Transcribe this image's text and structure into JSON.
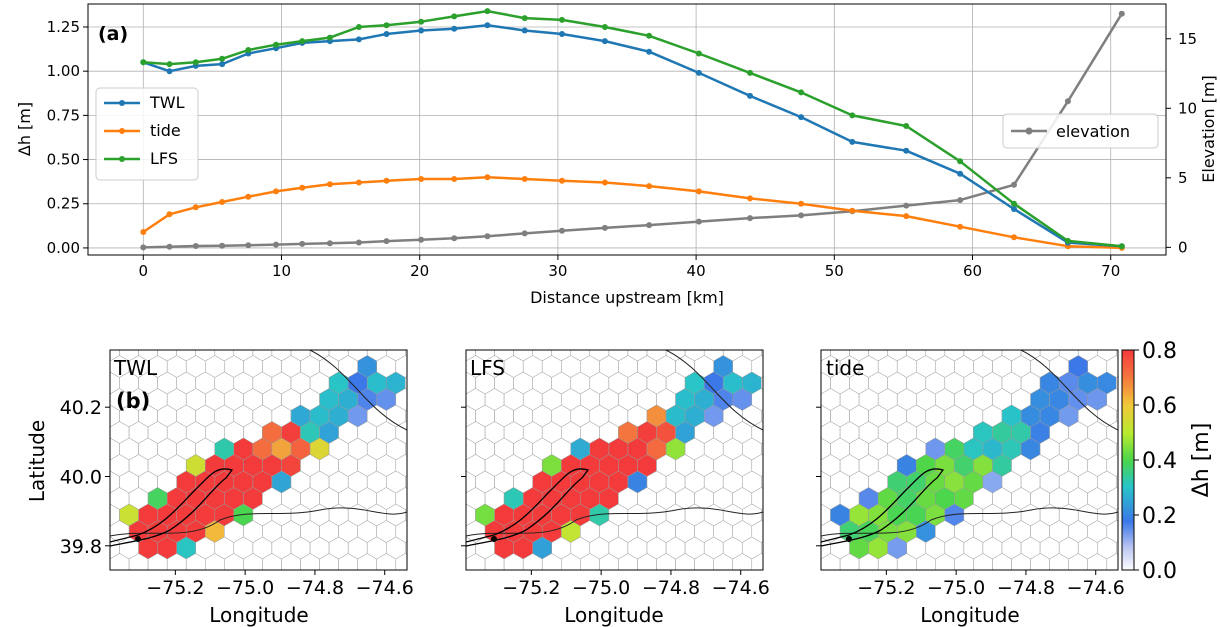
{
  "chart_data": [
    {
      "type": "line",
      "panel_label": "(a)",
      "xlabel": "Distance upstream [km]",
      "ylabel": "Δh [m]",
      "y2label": "Elevation [m]",
      "xlim": [
        -4,
        74
      ],
      "ylim": [
        -0.04,
        1.38
      ],
      "y2lim": [
        -0.55,
        17.5
      ],
      "xticks": [
        0,
        10,
        20,
        30,
        40,
        50,
        60,
        70
      ],
      "yticks": [
        "0.00",
        "0.25",
        "0.50",
        "0.75",
        "1.00",
        "1.25"
      ],
      "y2ticks": [
        0,
        5,
        10,
        15
      ],
      "grid": true,
      "legend_left": "center-left",
      "legend_right": "center-right",
      "x": [
        0,
        1.9,
        3.8,
        5.7,
        7.6,
        9.6,
        11.5,
        13.5,
        15.6,
        17.6,
        20.1,
        22.5,
        24.9,
        27.6,
        30.3,
        33.4,
        36.6,
        40.2,
        43.9,
        47.6,
        51.3,
        55.2,
        59.1,
        63.0,
        66.9,
        70.8
      ],
      "series": [
        {
          "name": "TWL",
          "axis": "left",
          "color": "#1f77b4",
          "values": [
            1.05,
            1.0,
            1.03,
            1.04,
            1.1,
            1.13,
            1.16,
            1.17,
            1.18,
            1.21,
            1.23,
            1.24,
            1.26,
            1.23,
            1.21,
            1.17,
            1.11,
            0.99,
            0.86,
            0.74,
            0.6,
            0.55,
            0.42,
            0.22,
            0.03,
            0.01
          ]
        },
        {
          "name": "tide",
          "axis": "left",
          "color": "#ff7f0e",
          "values": [
            0.09,
            0.19,
            0.23,
            0.26,
            0.29,
            0.32,
            0.34,
            0.36,
            0.37,
            0.38,
            0.39,
            0.39,
            0.4,
            0.39,
            0.38,
            0.37,
            0.35,
            0.32,
            0.28,
            0.25,
            0.21,
            0.18,
            0.12,
            0.06,
            0.01,
            0.0
          ]
        },
        {
          "name": "LFS",
          "axis": "left",
          "color": "#2ca02c",
          "values": [
            1.05,
            1.04,
            1.05,
            1.07,
            1.12,
            1.15,
            1.17,
            1.19,
            1.25,
            1.26,
            1.28,
            1.31,
            1.34,
            1.3,
            1.29,
            1.25,
            1.2,
            1.1,
            0.99,
            0.88,
            0.75,
            0.69,
            0.49,
            0.25,
            0.04,
            0.01
          ]
        },
        {
          "name": "elevation",
          "axis": "right",
          "color": "#7f7f7f",
          "values": [
            0.0,
            0.05,
            0.1,
            0.12,
            0.15,
            0.2,
            0.25,
            0.3,
            0.35,
            0.45,
            0.55,
            0.65,
            0.8,
            1.0,
            1.2,
            1.4,
            1.6,
            1.85,
            2.1,
            2.3,
            2.6,
            3.0,
            3.4,
            4.5,
            10.5,
            16.8
          ]
        }
      ]
    },
    {
      "type": "heatmap",
      "panel_label": "(b)",
      "subplots": [
        {
          "title": "TWL",
          "mode": "twl"
        },
        {
          "title": "LFS",
          "mode": "lfs"
        },
        {
          "title": "tide",
          "mode": "tide"
        }
      ],
      "xlabel": "Longitude",
      "ylabel": "Latitude",
      "xlim": [
        -75.4,
        -74.55
      ],
      "ylim": [
        39.75,
        40.35
      ],
      "xticks": [
        "−75.2",
        "−75.0",
        "−74.8",
        "−74.6"
      ],
      "yticks": [
        "39.8",
        "40.0",
        "40.2"
      ],
      "colorbar": {
        "label": "Δh [m]",
        "min": 0.0,
        "max": 0.8,
        "ticks": [
          "0.0",
          "0.2",
          "0.4",
          "0.6",
          "0.8"
        ]
      }
    }
  ]
}
